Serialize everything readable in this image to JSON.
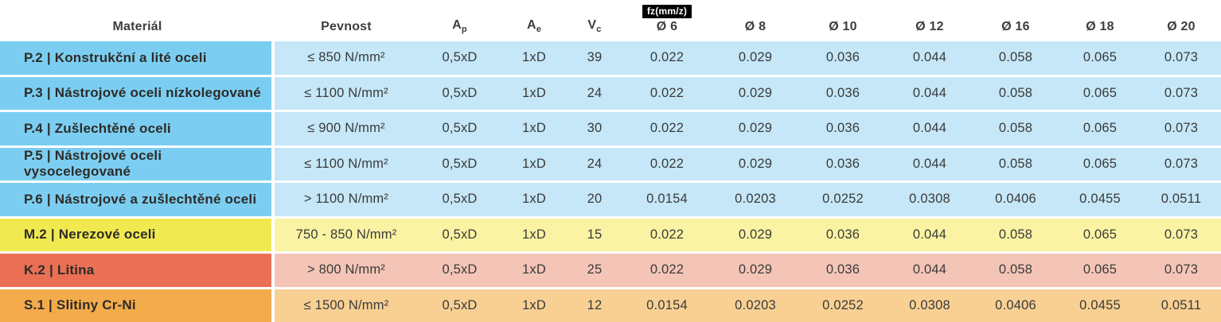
{
  "colors": {
    "blue_label": "#7bcef1",
    "blue_cell": "#c5e7f7",
    "yellow_label": "#f0ea50",
    "yellow_cell": "#faf3a3",
    "red_label": "#e97054",
    "red_cell": "#f4c5b7",
    "orange_label": "#f4ab4c",
    "orange_cell": "#f8d093",
    "badge_bg": "#000000",
    "badge_text": "#ffffff",
    "header_text": "#3d3d3d"
  },
  "table": {
    "headers": {
      "material": "Materiál",
      "pevnost": "Pevnost",
      "ap_main": "A",
      "ap_sub": "p",
      "ae_main": "A",
      "ae_sub": "e",
      "vc_main": "V",
      "vc_sub": "c",
      "fz_badge": "fz(mm/z)",
      "diameters": [
        "Ø 6",
        "Ø 8",
        "Ø 10",
        "Ø 12",
        "Ø 16",
        "Ø 18",
        "Ø 20"
      ]
    },
    "rows": [
      {
        "theme": "blue",
        "material": "P.2 | Konstrukční a lité oceli",
        "pevnost": "≤ 850 N/mm²",
        "ap": "0,5xD",
        "ae": "1xD",
        "vc": "39",
        "fz": [
          "0.022",
          "0.029",
          "0.036",
          "0.044",
          "0.058",
          "0.065",
          "0.073"
        ]
      },
      {
        "theme": "blue",
        "material": "P.3 | Nástrojové oceli nízkolegované",
        "pevnost": "≤ 1100 N/mm²",
        "ap": "0,5xD",
        "ae": "1xD",
        "vc": "24",
        "fz": [
          "0.022",
          "0.029",
          "0.036",
          "0.044",
          "0.058",
          "0.065",
          "0.073"
        ]
      },
      {
        "theme": "blue",
        "material": "P.4 | Zušlechtěné oceli",
        "pevnost": "≤ 900 N/mm²",
        "ap": "0,5xD",
        "ae": "1xD",
        "vc": "30",
        "fz": [
          "0.022",
          "0.029",
          "0.036",
          "0.044",
          "0.058",
          "0.065",
          "0.073"
        ]
      },
      {
        "theme": "blue",
        "material": "P.5 | Nástrojové oceli vysocelegované",
        "pevnost": "≤ 1100 N/mm²",
        "ap": "0,5xD",
        "ae": "1xD",
        "vc": "24",
        "fz": [
          "0.022",
          "0.029",
          "0.036",
          "0.044",
          "0.058",
          "0.065",
          "0.073"
        ]
      },
      {
        "theme": "blue",
        "material": "P.6 | Nástrojové a zušlechtěné oceli",
        "pevnost": "> 1100 N/mm²",
        "ap": "0,5xD",
        "ae": "1xD",
        "vc": "20",
        "fz": [
          "0.0154",
          "0.0203",
          "0.0252",
          "0.0308",
          "0.0406",
          "0.0455",
          "0.0511"
        ]
      },
      {
        "theme": "yellow",
        "material": "M.2 | Nerezové oceli",
        "pevnost": "750 - 850 N/mm²",
        "ap": "0,5xD",
        "ae": "1xD",
        "vc": "15",
        "fz": [
          "0.022",
          "0.029",
          "0.036",
          "0.044",
          "0.058",
          "0.065",
          "0.073"
        ]
      },
      {
        "theme": "red",
        "material": "K.2 | Litina",
        "pevnost": "> 800 N/mm²",
        "ap": "0,5xD",
        "ae": "1xD",
        "vc": "25",
        "fz": [
          "0.022",
          "0.029",
          "0.036",
          "0.044",
          "0.058",
          "0.065",
          "0.073"
        ]
      },
      {
        "theme": "orange",
        "material": "S.1 | Slitiny Cr-Ni",
        "pevnost": "≤ 1500 N/mm²",
        "ap": "0,5xD",
        "ae": "1xD",
        "vc": "12",
        "fz": [
          "0.0154",
          "0.0203",
          "0.0252",
          "0.0308",
          "0.0406",
          "0.0455",
          "0.0511"
        ]
      }
    ]
  }
}
